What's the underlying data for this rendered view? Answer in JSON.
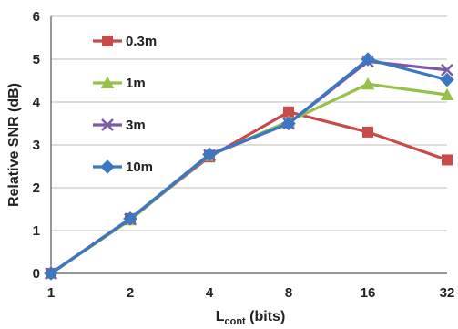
{
  "chart_data": {
    "type": "line",
    "categories": [
      "1",
      "2",
      "4",
      "8",
      "16",
      "32"
    ],
    "xlabel_main": "L",
    "xlabel_sub": "cont",
    "xlabel_unit": " (bits)",
    "ylabel": "Relative SNR (dB)",
    "ylim": [
      0,
      6
    ],
    "yticks": [
      "0",
      "1",
      "2",
      "3",
      "4",
      "5",
      "6"
    ],
    "grid": "horizontal",
    "legend_position": "top-left",
    "series": [
      {
        "name": "0.3m",
        "color": "#c94a4a",
        "marker": "square",
        "values": [
          0,
          1.28,
          2.72,
          3.77,
          3.3,
          2.65
        ]
      },
      {
        "name": "1m",
        "color": "#97c04a",
        "marker": "triangle",
        "values": [
          0,
          1.25,
          2.75,
          3.55,
          4.42,
          4.17
        ]
      },
      {
        "name": "3m",
        "color": "#7d5aa8",
        "marker": "x",
        "values": [
          0,
          1.27,
          2.76,
          3.5,
          4.95,
          4.75
        ]
      },
      {
        "name": "10m",
        "color": "#3a78c2",
        "marker": "diamond",
        "values": [
          0,
          1.28,
          2.78,
          3.5,
          5.0,
          4.52
        ]
      }
    ]
  }
}
